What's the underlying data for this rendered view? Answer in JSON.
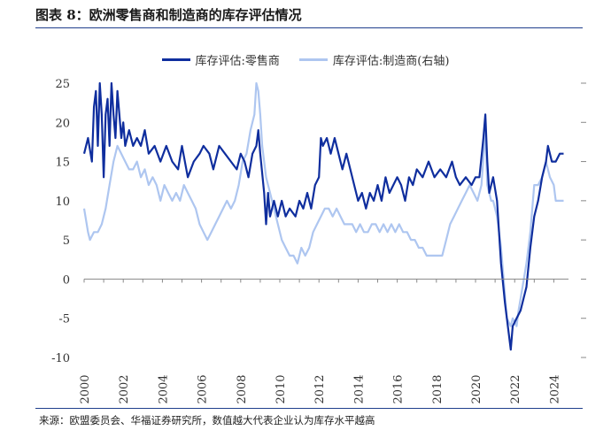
{
  "header": {
    "title": "图表 8：欧洲零售商和制造商的库存评估情况"
  },
  "footer": {
    "source": "来源：欧盟委员会、华福证券研究所，数值越大代表企业认为库存水平越高"
  },
  "colors": {
    "rule": "#1f3f8c"
  },
  "chart_data": {
    "type": "line",
    "title": "图表 8：欧洲零售商和制造商的库存评估情况",
    "xlabel": "",
    "ylabel": "",
    "x_range": [
      2000.0,
      2024.75
    ],
    "x_ticks": [
      "2000",
      "2002",
      "2004",
      "2006",
      "2008",
      "2010",
      "2012",
      "2014",
      "2016",
      "2018",
      "2020",
      "2022",
      "2024"
    ],
    "y_left": {
      "lim": [
        -10,
        25
      ],
      "ticks": [
        "-10",
        "-5",
        "0",
        "5",
        "10",
        "15",
        "20",
        "25"
      ]
    },
    "y_right": {
      "lim": [
        -10,
        25
      ]
    },
    "legend": {
      "position": "top-center"
    },
    "grid": false,
    "series": [
      {
        "name": "库存评估:零售商",
        "axis": "left",
        "color": "#0f2e9e",
        "width": 2.2,
        "points": [
          [
            2000.0,
            16
          ],
          [
            2000.2,
            18
          ],
          [
            2000.4,
            15
          ],
          [
            2000.5,
            22
          ],
          [
            2000.6,
            24
          ],
          [
            2000.7,
            17
          ],
          [
            2000.8,
            25
          ],
          [
            2000.9,
            21
          ],
          [
            2001.0,
            13
          ],
          [
            2001.1,
            21
          ],
          [
            2001.2,
            23
          ],
          [
            2001.3,
            17
          ],
          [
            2001.4,
            25
          ],
          [
            2001.5,
            21
          ],
          [
            2001.6,
            18
          ],
          [
            2001.7,
            24
          ],
          [
            2001.8,
            21
          ],
          [
            2001.9,
            18
          ],
          [
            2002.0,
            20
          ],
          [
            2002.1,
            17
          ],
          [
            2002.3,
            19
          ],
          [
            2002.5,
            17
          ],
          [
            2002.7,
            18
          ],
          [
            2002.9,
            17
          ],
          [
            2003.1,
            19
          ],
          [
            2003.3,
            16
          ],
          [
            2003.6,
            17
          ],
          [
            2003.9,
            15
          ],
          [
            2004.2,
            17
          ],
          [
            2004.5,
            15
          ],
          [
            2004.8,
            14
          ],
          [
            2005.0,
            17
          ],
          [
            2005.3,
            13
          ],
          [
            2005.6,
            15
          ],
          [
            2005.9,
            16
          ],
          [
            2006.1,
            17
          ],
          [
            2006.4,
            16
          ],
          [
            2006.6,
            14
          ],
          [
            2006.9,
            17
          ],
          [
            2007.2,
            16
          ],
          [
            2007.5,
            15
          ],
          [
            2007.8,
            14
          ],
          [
            2008.0,
            16
          ],
          [
            2008.2,
            15
          ],
          [
            2008.4,
            13
          ],
          [
            2008.6,
            16
          ],
          [
            2008.8,
            17
          ],
          [
            2008.9,
            19
          ],
          [
            2009.0,
            16
          ],
          [
            2009.2,
            11
          ],
          [
            2009.3,
            7
          ],
          [
            2009.4,
            11
          ],
          [
            2009.5,
            8
          ],
          [
            2009.7,
            10
          ],
          [
            2009.9,
            8
          ],
          [
            2010.1,
            10
          ],
          [
            2010.3,
            8
          ],
          [
            2010.5,
            9
          ],
          [
            2010.8,
            8
          ],
          [
            2011.0,
            10
          ],
          [
            2011.2,
            9
          ],
          [
            2011.4,
            11
          ],
          [
            2011.6,
            9
          ],
          [
            2011.8,
            12
          ],
          [
            2012.0,
            13
          ],
          [
            2012.1,
            18
          ],
          [
            2012.2,
            17
          ],
          [
            2012.4,
            18
          ],
          [
            2012.6,
            16
          ],
          [
            2012.8,
            18
          ],
          [
            2013.0,
            16
          ],
          [
            2013.2,
            14
          ],
          [
            2013.4,
            16
          ],
          [
            2013.6,
            14
          ],
          [
            2013.8,
            12
          ],
          [
            2014.0,
            10
          ],
          [
            2014.2,
            11
          ],
          [
            2014.4,
            9
          ],
          [
            2014.6,
            11
          ],
          [
            2014.8,
            10
          ],
          [
            2015.0,
            12
          ],
          [
            2015.2,
            10
          ],
          [
            2015.4,
            13
          ],
          [
            2015.6,
            11
          ],
          [
            2015.8,
            12
          ],
          [
            2016.0,
            13
          ],
          [
            2016.2,
            12
          ],
          [
            2016.4,
            10
          ],
          [
            2016.6,
            13
          ],
          [
            2016.8,
            12
          ],
          [
            2017.0,
            14
          ],
          [
            2017.3,
            13
          ],
          [
            2017.6,
            15
          ],
          [
            2017.9,
            13
          ],
          [
            2018.2,
            14
          ],
          [
            2018.5,
            13
          ],
          [
            2018.8,
            15
          ],
          [
            2019.0,
            13
          ],
          [
            2019.2,
            12
          ],
          [
            2019.5,
            13
          ],
          [
            2019.8,
            12
          ],
          [
            2020.0,
            13
          ],
          [
            2020.2,
            13
          ],
          [
            2020.4,
            18
          ],
          [
            2020.5,
            21
          ],
          [
            2020.6,
            15
          ],
          [
            2020.7,
            11
          ],
          [
            2020.9,
            13
          ],
          [
            2021.1,
            10
          ],
          [
            2021.3,
            2
          ],
          [
            2021.5,
            -3
          ],
          [
            2021.6,
            -5
          ],
          [
            2021.7,
            -7
          ],
          [
            2021.8,
            -9
          ],
          [
            2021.9,
            -6
          ],
          [
            2022.1,
            -5
          ],
          [
            2022.3,
            -4
          ],
          [
            2022.5,
            -2
          ],
          [
            2022.6,
            -1
          ],
          [
            2022.8,
            4
          ],
          [
            2023.0,
            8
          ],
          [
            2023.2,
            10
          ],
          [
            2023.4,
            13
          ],
          [
            2023.6,
            15
          ],
          [
            2023.7,
            17
          ],
          [
            2023.8,
            16
          ],
          [
            2023.9,
            15
          ],
          [
            2024.1,
            15
          ],
          [
            2024.3,
            16
          ],
          [
            2024.5,
            16
          ]
        ]
      },
      {
        "name": "库存评估:制造商(右轴)",
        "axis": "right",
        "color": "#aec6f0",
        "width": 2.2,
        "points": [
          [
            2000.0,
            9
          ],
          [
            2000.2,
            6
          ],
          [
            2000.3,
            5
          ],
          [
            2000.5,
            6
          ],
          [
            2000.7,
            6
          ],
          [
            2000.9,
            7
          ],
          [
            2001.1,
            9
          ],
          [
            2001.3,
            12
          ],
          [
            2001.5,
            15
          ],
          [
            2001.7,
            17
          ],
          [
            2001.9,
            16
          ],
          [
            2002.1,
            15
          ],
          [
            2002.3,
            14
          ],
          [
            2002.5,
            14
          ],
          [
            2002.7,
            15
          ],
          [
            2002.9,
            13
          ],
          [
            2003.1,
            14
          ],
          [
            2003.3,
            12
          ],
          [
            2003.5,
            13
          ],
          [
            2003.7,
            12
          ],
          [
            2003.9,
            10
          ],
          [
            2004.1,
            12
          ],
          [
            2004.3,
            11
          ],
          [
            2004.5,
            10
          ],
          [
            2004.7,
            11
          ],
          [
            2004.9,
            10
          ],
          [
            2005.1,
            12
          ],
          [
            2005.3,
            11
          ],
          [
            2005.5,
            10
          ],
          [
            2005.7,
            9
          ],
          [
            2005.9,
            7
          ],
          [
            2006.1,
            6
          ],
          [
            2006.3,
            5
          ],
          [
            2006.5,
            6
          ],
          [
            2006.7,
            7
          ],
          [
            2006.9,
            8
          ],
          [
            2007.1,
            9
          ],
          [
            2007.3,
            10
          ],
          [
            2007.5,
            9
          ],
          [
            2007.7,
            10
          ],
          [
            2007.9,
            12
          ],
          [
            2008.1,
            15
          ],
          [
            2008.3,
            16
          ],
          [
            2008.5,
            19
          ],
          [
            2008.7,
            21
          ],
          [
            2008.8,
            25
          ],
          [
            2008.9,
            24
          ],
          [
            2009.0,
            21
          ],
          [
            2009.1,
            17
          ],
          [
            2009.3,
            13
          ],
          [
            2009.5,
            11
          ],
          [
            2009.7,
            9
          ],
          [
            2009.9,
            7
          ],
          [
            2010.1,
            5
          ],
          [
            2010.3,
            4
          ],
          [
            2010.5,
            3
          ],
          [
            2010.7,
            3
          ],
          [
            2010.9,
            2
          ],
          [
            2011.1,
            4
          ],
          [
            2011.3,
            3
          ],
          [
            2011.5,
            4
          ],
          [
            2011.7,
            6
          ],
          [
            2011.9,
            7
          ],
          [
            2012.1,
            8
          ],
          [
            2012.3,
            9
          ],
          [
            2012.5,
            9
          ],
          [
            2012.7,
            8
          ],
          [
            2012.9,
            9
          ],
          [
            2013.1,
            8
          ],
          [
            2013.3,
            7
          ],
          [
            2013.5,
            7
          ],
          [
            2013.7,
            7
          ],
          [
            2013.9,
            6
          ],
          [
            2014.1,
            7
          ],
          [
            2014.3,
            6
          ],
          [
            2014.5,
            6
          ],
          [
            2014.7,
            7
          ],
          [
            2014.9,
            7
          ],
          [
            2015.1,
            6
          ],
          [
            2015.3,
            7
          ],
          [
            2015.5,
            6
          ],
          [
            2015.7,
            7
          ],
          [
            2015.9,
            6
          ],
          [
            2016.1,
            7
          ],
          [
            2016.3,
            6
          ],
          [
            2016.5,
            6
          ],
          [
            2016.7,
            5
          ],
          [
            2016.9,
            5
          ],
          [
            2017.1,
            4
          ],
          [
            2017.3,
            4
          ],
          [
            2017.5,
            3
          ],
          [
            2017.7,
            3
          ],
          [
            2017.9,
            3
          ],
          [
            2018.1,
            3
          ],
          [
            2018.3,
            3
          ],
          [
            2018.5,
            5
          ],
          [
            2018.7,
            7
          ],
          [
            2018.9,
            8
          ],
          [
            2019.1,
            9
          ],
          [
            2019.3,
            10
          ],
          [
            2019.5,
            11
          ],
          [
            2019.7,
            12
          ],
          [
            2019.9,
            11
          ],
          [
            2020.1,
            10
          ],
          [
            2020.3,
            12
          ],
          [
            2020.5,
            19
          ],
          [
            2020.6,
            12
          ],
          [
            2020.8,
            10
          ],
          [
            2020.9,
            10
          ],
          [
            2021.1,
            8
          ],
          [
            2021.3,
            4
          ],
          [
            2021.5,
            -2
          ],
          [
            2021.6,
            -5
          ],
          [
            2021.8,
            -6
          ],
          [
            2021.9,
            -5
          ],
          [
            2022.1,
            -6
          ],
          [
            2022.2,
            -4
          ],
          [
            2022.4,
            -1
          ],
          [
            2022.6,
            2
          ],
          [
            2022.8,
            6
          ],
          [
            2023.0,
            12
          ],
          [
            2023.2,
            12
          ],
          [
            2023.4,
            13
          ],
          [
            2023.6,
            15
          ],
          [
            2023.8,
            13
          ],
          [
            2024.0,
            12
          ],
          [
            2024.1,
            10
          ],
          [
            2024.3,
            10
          ],
          [
            2024.5,
            10
          ]
        ]
      }
    ]
  }
}
